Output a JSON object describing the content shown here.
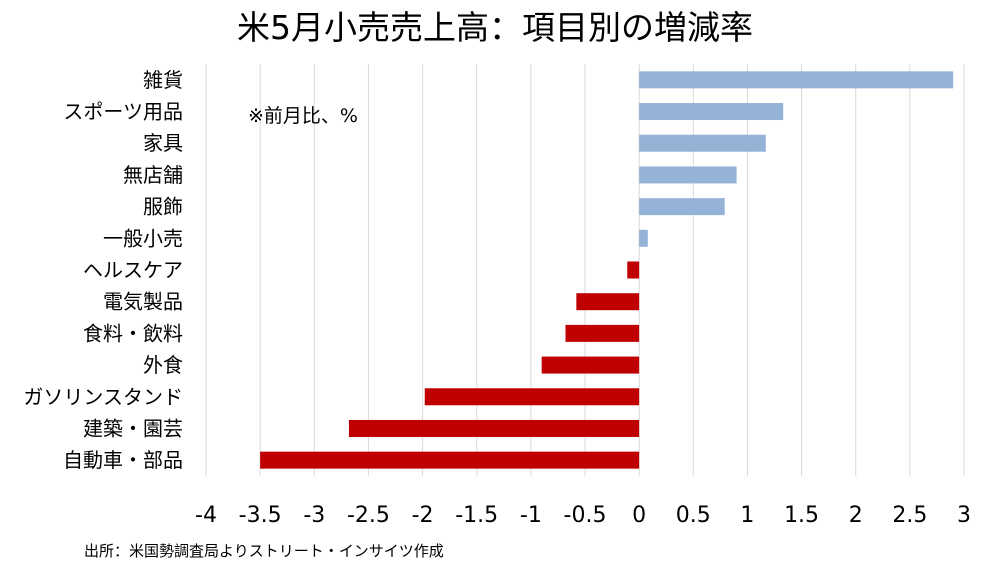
{
  "chart_data": {
    "type": "bar",
    "orientation": "horizontal",
    "title": "米5月小売売上高：項目別の増減率",
    "unit_note": "※前月比、%",
    "source": "出所：米国勢調査局よりストリート・インサイツ作成",
    "categories": [
      "雑貨",
      "スポーツ用品",
      "家具",
      "無店舗",
      "服飾",
      "一般小売",
      "ヘルスケア",
      "電気製品",
      "食料・飲料",
      "外食",
      "ガソリンスタンド",
      "建築・園芸",
      "自動車・部品"
    ],
    "values": [
      2.9,
      1.33,
      1.17,
      0.9,
      0.79,
      0.08,
      -0.11,
      -0.58,
      -0.68,
      -0.9,
      -1.98,
      -2.68,
      -3.5
    ],
    "xlim": [
      -4,
      3
    ],
    "xticks": [
      "-4",
      "-3.5",
      "-3",
      "-2.5",
      "-2",
      "-1.5",
      "-1",
      "-0.5",
      "0",
      "0.5",
      "1",
      "1.5",
      "2",
      "2.5",
      "3"
    ],
    "grid": true,
    "colors": {
      "positive": "#95B3D7",
      "negative": "#C00000",
      "grid": "#D9D9D9"
    }
  }
}
